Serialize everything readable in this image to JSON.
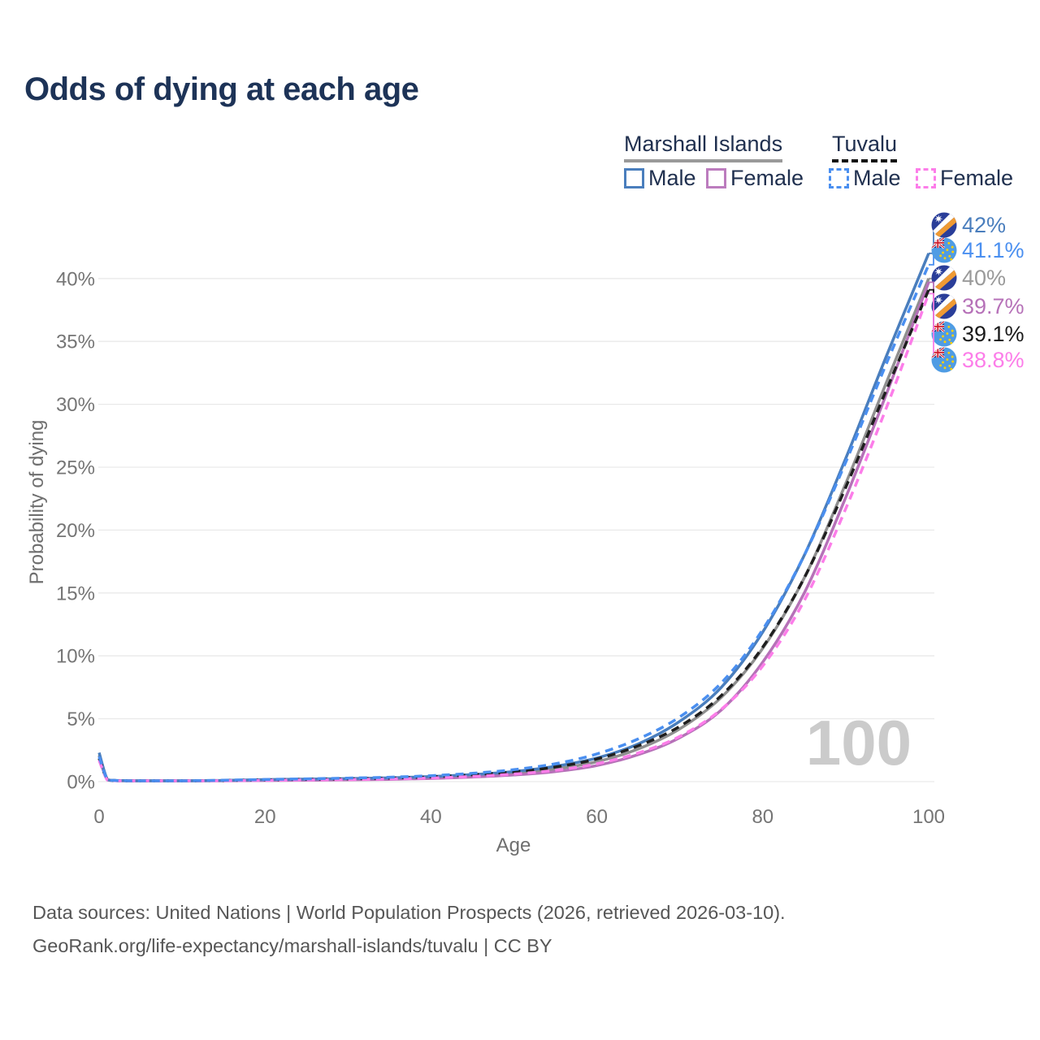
{
  "title": "Odds of dying at each age",
  "watermark": "100",
  "legend": {
    "groups": [
      {
        "name": "Marshall Islands",
        "line_style": "solid",
        "underline_color": "#9a9a9a",
        "items": [
          {
            "label": "Male",
            "color": "#4a7ebd",
            "dashed": false
          },
          {
            "label": "Female",
            "color": "#bc7cbe",
            "dashed": false
          }
        ]
      },
      {
        "name": "Tuvalu",
        "line_style": "dashed",
        "underline_color": "#141414",
        "items": [
          {
            "label": "Male",
            "color": "#4a8ff0",
            "dashed": true
          },
          {
            "label": "Female",
            "color": "#fc7de9",
            "dashed": true
          }
        ]
      }
    ]
  },
  "chart_data": {
    "type": "line",
    "title": "Odds of dying at each age",
    "xlabel": "Age",
    "ylabel": "Probability of dying",
    "xlim": [
      0,
      100
    ],
    "ylim": [
      0,
      42
    ],
    "grid": "horizontal",
    "xticks": [
      {
        "value": 0,
        "label": "0"
      },
      {
        "value": 20,
        "label": "20"
      },
      {
        "value": 40,
        "label": "40"
      },
      {
        "value": 60,
        "label": "60"
      },
      {
        "value": 80,
        "label": "80"
      },
      {
        "value": 100,
        "label": "100"
      }
    ],
    "yticks": [
      {
        "value": 0,
        "label": "0%"
      },
      {
        "value": 5,
        "label": "5%"
      },
      {
        "value": 10,
        "label": "10%"
      },
      {
        "value": 15,
        "label": "15%"
      },
      {
        "value": 20,
        "label": "20%"
      },
      {
        "value": 25,
        "label": "25%"
      },
      {
        "value": 30,
        "label": "30%"
      },
      {
        "value": 35,
        "label": "35%"
      },
      {
        "value": 40,
        "label": "40%"
      }
    ],
    "x": [
      0,
      1,
      2,
      3,
      4,
      5,
      10,
      15,
      20,
      25,
      30,
      35,
      40,
      45,
      50,
      55,
      60,
      65,
      70,
      75,
      80,
      85,
      90,
      95,
      100
    ],
    "series": [
      {
        "name": "Marshall Islands Total",
        "country": "Marshall Islands",
        "group": "Total",
        "color": "#8f8f8f",
        "dashed": false,
        "flag": "mh",
        "end_label": {
          "text": "40%",
          "color": "#9a9a9a",
          "value": 40.0
        },
        "values": [
          2.1,
          0.16,
          0.09,
          0.07,
          0.06,
          0.05,
          0.05,
          0.08,
          0.13,
          0.16,
          0.19,
          0.24,
          0.33,
          0.46,
          0.67,
          1.01,
          1.58,
          2.6,
          4.2,
          6.7,
          10.6,
          16.2,
          23.7,
          31.9,
          40.0
        ]
      },
      {
        "name": "Marshall Islands Female",
        "country": "Marshall Islands",
        "group": "Female",
        "color": "#b671b8",
        "dashed": false,
        "flag": "mh",
        "end_label": {
          "text": "39.7%",
          "color": "#b671b8",
          "value": 39.7
        },
        "values": [
          1.85,
          0.14,
          0.08,
          0.06,
          0.05,
          0.04,
          0.04,
          0.06,
          0.09,
          0.11,
          0.14,
          0.18,
          0.25,
          0.36,
          0.53,
          0.8,
          1.28,
          2.15,
          3.5,
          5.7,
          9.5,
          15.0,
          22.6,
          31.0,
          39.7
        ]
      },
      {
        "name": "Marshall Islands Male",
        "country": "Marshall Islands",
        "group": "Male",
        "color": "#4a7ebd",
        "dashed": false,
        "flag": "mh",
        "end_label": {
          "text": "42%",
          "color": "#4a7ebd",
          "value": 42.0
        },
        "values": [
          2.3,
          0.17,
          0.1,
          0.08,
          0.06,
          0.06,
          0.06,
          0.1,
          0.16,
          0.2,
          0.24,
          0.3,
          0.4,
          0.56,
          0.8,
          1.22,
          1.88,
          3.0,
          4.8,
          7.5,
          11.9,
          18.0,
          25.7,
          34.0,
          42.0
        ]
      },
      {
        "name": "Tuvalu Total",
        "country": "Tuvalu",
        "group": "Total",
        "color": "#1f1f1f",
        "dashed": true,
        "flag": "tv",
        "end_label": {
          "text": "39.1%",
          "color": "#1a1a1a",
          "value": 39.1
        },
        "values": [
          1.85,
          0.14,
          0.08,
          0.06,
          0.05,
          0.05,
          0.05,
          0.09,
          0.14,
          0.18,
          0.22,
          0.28,
          0.38,
          0.54,
          0.78,
          1.16,
          1.8,
          2.85,
          4.4,
          6.85,
          10.7,
          16.2,
          23.4,
          31.3,
          39.1
        ]
      },
      {
        "name": "Tuvalu Female",
        "country": "Tuvalu",
        "group": "Female",
        "color": "#fc7de9",
        "dashed": true,
        "flag": "tv",
        "end_label": {
          "text": "38.8%",
          "color": "#fc7de9",
          "value": 38.8
        },
        "values": [
          1.7,
          0.12,
          0.07,
          0.05,
          0.04,
          0.04,
          0.04,
          0.07,
          0.1,
          0.13,
          0.16,
          0.21,
          0.29,
          0.41,
          0.6,
          0.9,
          1.42,
          2.28,
          3.6,
          5.75,
          9.2,
          14.4,
          21.7,
          29.9,
          38.8
        ]
      },
      {
        "name": "Tuvalu Male",
        "country": "Tuvalu",
        "group": "Male",
        "color": "#4a8ff0",
        "dashed": true,
        "flag": "tv",
        "end_label": {
          "text": "41.1%",
          "color": "#4a8ff0",
          "value": 41.1
        },
        "values": [
          2.0,
          0.16,
          0.09,
          0.07,
          0.06,
          0.05,
          0.06,
          0.11,
          0.17,
          0.22,
          0.28,
          0.35,
          0.47,
          0.66,
          0.95,
          1.42,
          2.2,
          3.4,
          5.15,
          7.85,
          12.1,
          18.0,
          25.4,
          33.4,
          41.1
        ]
      }
    ]
  },
  "footer": {
    "line1": "Data sources: United Nations | World Population Prospects (2026, retrieved 2026-03-10).",
    "line2": "GeoRank.org/life-expectancy/marshall-islands/tuvalu | CC BY"
  }
}
